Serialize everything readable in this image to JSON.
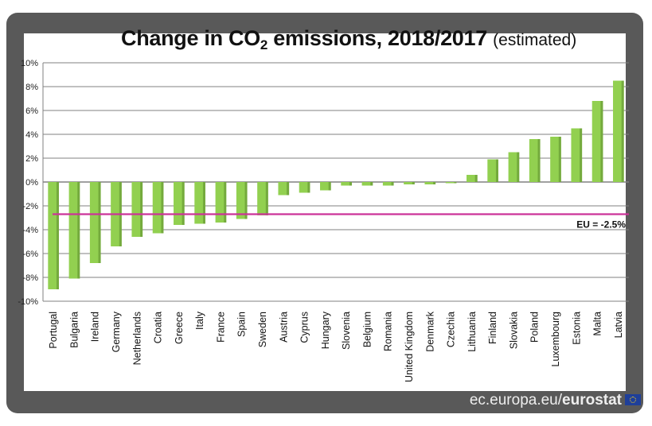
{
  "title": {
    "main_prefix": "Change in CO",
    "main_sub": "2",
    "main_suffix": " emissions, 2018/2017",
    "estimated": "(estimated)"
  },
  "source": {
    "prefix": "ec.europa.eu/",
    "brand": "eurostat",
    "logo_icon": "eu-flag-icon"
  },
  "colors": {
    "frame": "#595959",
    "bar": "#92d050",
    "bar_shade": "#5b8a2e",
    "eu_line": "#cc3399",
    "grid": "#808080"
  },
  "chart_data": {
    "type": "bar",
    "title": "Change in CO2 emissions, 2018/2017 (estimated)",
    "categories": [
      "Portugal",
      "Bulgaria",
      "Ireland",
      "Germany",
      "Netherlands",
      "Croatia",
      "Greece",
      "Italy",
      "France",
      "Spain",
      "Sweden",
      "Austria",
      "Cyprus",
      "Hungary",
      "Slovenia",
      "Belgium",
      "Romania",
      "United Kingdom",
      "Denmark",
      "Czechia",
      "Lithuania",
      "Finland",
      "Slovakia",
      "Poland",
      "Luxembourg",
      "Estonia",
      "Malta",
      "Latvia"
    ],
    "values": [
      -9.0,
      -8.1,
      -6.8,
      -5.4,
      -4.6,
      -4.3,
      -3.6,
      -3.5,
      -3.4,
      -3.1,
      -2.8,
      -1.1,
      -0.9,
      -0.7,
      -0.3,
      -0.3,
      -0.3,
      -0.2,
      -0.2,
      -0.1,
      0.6,
      1.9,
      2.5,
      3.6,
      3.8,
      4.5,
      6.8,
      8.5
    ],
    "ylim": [
      -10,
      10
    ],
    "yticks": [
      -10,
      -8,
      -6,
      -4,
      -2,
      0,
      2,
      4,
      6,
      8,
      10
    ],
    "ytick_labels": [
      "-10%",
      "-8%",
      "-6%",
      "-4%",
      "-2%",
      "0%",
      "2%",
      "4%",
      "6%",
      "8%",
      "10%"
    ],
    "grid": true,
    "reference_line": {
      "value": -2.5,
      "label": "EU = -2.5%"
    }
  }
}
